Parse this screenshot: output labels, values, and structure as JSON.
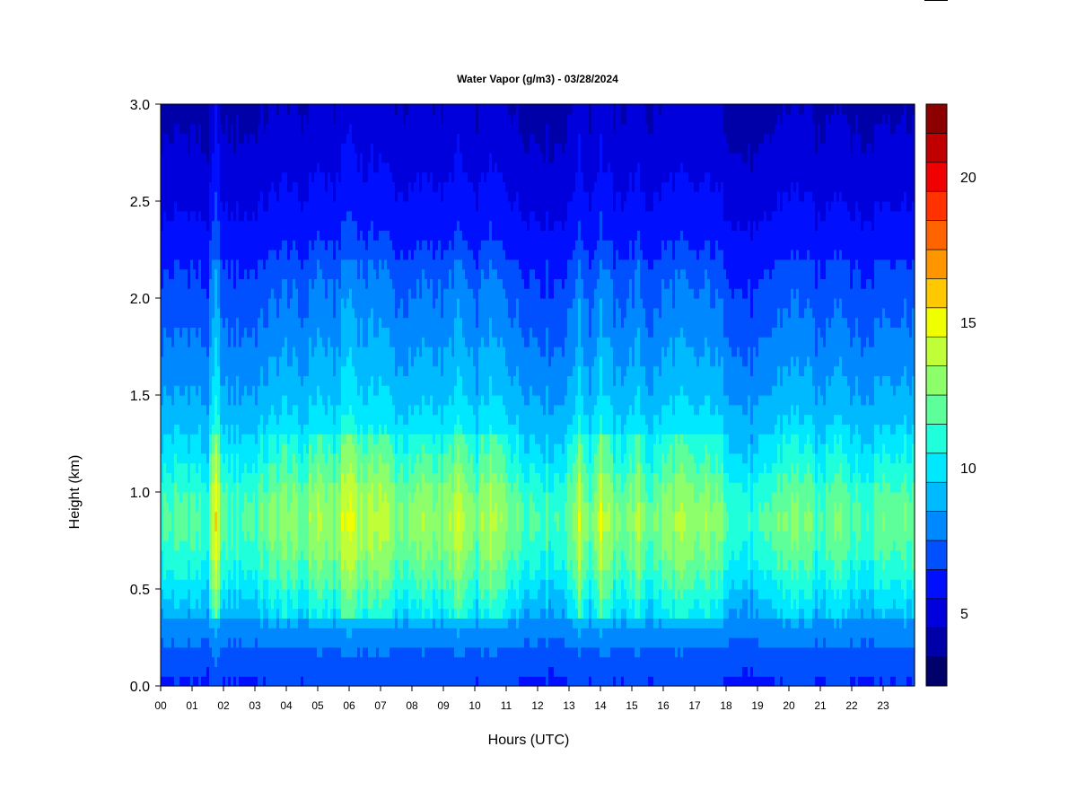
{
  "chart_data": {
    "type": "heatmap",
    "title": "Water Vapor (g/m3) - 03/28/2024",
    "xlabel": "Hours (UTC)",
    "ylabel": "Height (km)",
    "x_unit": "hour",
    "xlim": [
      0,
      24
    ],
    "ylim": [
      0.0,
      3.0
    ],
    "x_tick_labels": [
      "00",
      "01",
      "02",
      "03",
      "04",
      "05",
      "06",
      "07",
      "08",
      "09",
      "10",
      "11",
      "12",
      "13",
      "14",
      "15",
      "16",
      "17",
      "18",
      "19",
      "20",
      "21",
      "22",
      "23"
    ],
    "y_tick_values": [
      0.0,
      0.5,
      1.0,
      1.5,
      2.0,
      2.5,
      3.0
    ],
    "y_tick_labels": [
      "0.0",
      "0.5",
      "1.0",
      "1.5",
      "2.0",
      "2.5",
      "3.0"
    ],
    "colorbar": {
      "min": 3,
      "max": 23,
      "step": 1,
      "tick_values": [
        5,
        10,
        15,
        20
      ],
      "tick_labels": [
        "5",
        "10",
        "15",
        "20"
      ],
      "colors": [
        "#00006b",
        "#0000a8",
        "#0000dd",
        "#0010ff",
        "#0050ff",
        "#0088ff",
        "#00baff",
        "#00e8ff",
        "#20ffdc",
        "#5cff9a",
        "#8cff6a",
        "#c0ff38",
        "#f0ff00",
        "#ffc800",
        "#ff9600",
        "#ff6400",
        "#ff3200",
        "#f00000",
        "#c00000",
        "#8c0000"
      ]
    },
    "profile": {
      "heights_km": [
        0.0,
        0.15,
        0.25,
        0.4,
        0.6,
        0.85,
        1.0,
        1.2,
        1.5,
        1.8,
        2.1,
        2.4,
        2.7,
        3.0
      ],
      "base_values": [
        6.8,
        7.4,
        8.2,
        9.4,
        11.0,
        12.2,
        11.6,
        10.3,
        8.9,
        7.9,
        7.0,
        6.0,
        5.2,
        4.6
      ]
    },
    "hourly_moisture_offset": [
      [
        0,
        0.0
      ],
      [
        1.0,
        0.4
      ],
      [
        1.5,
        -0.2
      ],
      [
        1.75,
        3.6
      ],
      [
        2.0,
        0.2
      ],
      [
        3.0,
        0.3
      ],
      [
        4.0,
        1.6
      ],
      [
        4.5,
        0.6
      ],
      [
        5.0,
        2.2
      ],
      [
        5.5,
        1.0
      ],
      [
        6.0,
        3.4
      ],
      [
        6.5,
        1.8
      ],
      [
        7.0,
        2.6
      ],
      [
        7.5,
        1.2
      ],
      [
        8.0,
        1.0
      ],
      [
        8.5,
        1.9
      ],
      [
        9.0,
        1.0
      ],
      [
        9.5,
        2.6
      ],
      [
        10.0,
        0.6
      ],
      [
        10.4,
        2.2
      ],
      [
        11.0,
        1.4
      ],
      [
        11.5,
        0.4
      ],
      [
        12.0,
        0.2
      ],
      [
        12.5,
        -0.2
      ],
      [
        13.0,
        0.4
      ],
      [
        13.3,
        2.6
      ],
      [
        13.7,
        0.6
      ],
      [
        14.0,
        2.9
      ],
      [
        14.5,
        0.6
      ],
      [
        15.2,
        1.8
      ],
      [
        15.6,
        0.4
      ],
      [
        16.0,
        1.4
      ],
      [
        16.5,
        1.8
      ],
      [
        17.0,
        1.2
      ],
      [
        17.5,
        1.6
      ],
      [
        18.0,
        0.6
      ],
      [
        18.5,
        -0.5
      ],
      [
        19.0,
        -0.6
      ],
      [
        19.5,
        0.4
      ],
      [
        20.0,
        1.2
      ],
      [
        20.5,
        1.0
      ],
      [
        21.0,
        -0.2
      ],
      [
        21.5,
        1.6
      ],
      [
        22.0,
        0.4
      ],
      [
        22.5,
        -0.2
      ],
      [
        23.0,
        0.9
      ],
      [
        23.5,
        0.8
      ],
      [
        24.0,
        0.8
      ]
    ]
  }
}
